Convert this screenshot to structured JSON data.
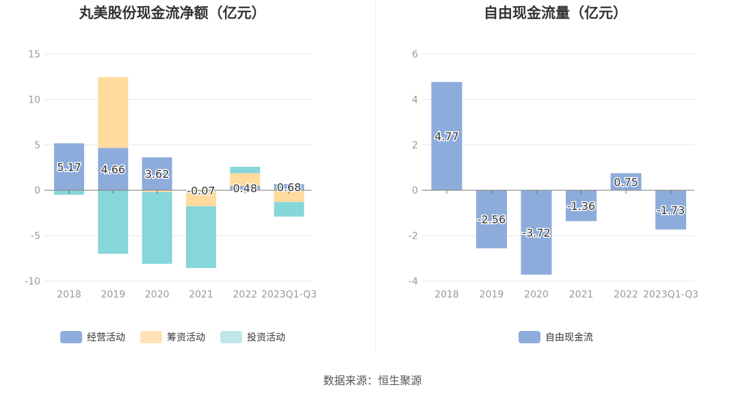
{
  "source": "数据来源：恒生聚源",
  "chart_data": [
    {
      "type": "bar",
      "stacked": true,
      "title": "丸美股份现金流净额（亿元）",
      "categories": [
        "2018",
        "2019",
        "2020",
        "2021",
        "2022",
        "2023Q1-Q3"
      ],
      "y_ticks": [
        15,
        10,
        5,
        0,
        -5,
        -10
      ],
      "ylim": [
        -10,
        15
      ],
      "series": [
        {
          "name": "经营活动",
          "color": "#8eacdb",
          "values": [
            5.17,
            4.66,
            3.62,
            -0.07,
            0.48,
            0.68
          ],
          "labels": [
            "5.17",
            "4.66",
            "3.62",
            "-0.07",
            "0.48",
            "0.68"
          ]
        },
        {
          "name": "筹资活动",
          "color": "#ffdb9e",
          "values": [
            0.0,
            7.8,
            -0.2,
            -1.7,
            1.4,
            -1.3
          ]
        },
        {
          "name": "投资活动",
          "color": "#86d6da",
          "values": [
            -0.5,
            -7.0,
            -7.9,
            -6.8,
            0.7,
            -1.6
          ]
        }
      ],
      "legend": [
        {
          "name": "经营活动",
          "color": "#8eacdb"
        },
        {
          "name": "筹资活动",
          "color": "#ffe1b5"
        },
        {
          "name": "投资活动",
          "color": "#bfe6e8"
        }
      ]
    },
    {
      "type": "bar",
      "title": "自由现金流量（亿元）",
      "categories": [
        "2018",
        "2019",
        "2020",
        "2021",
        "2022",
        "2023Q1-Q3"
      ],
      "y_ticks": [
        6,
        4,
        2,
        0,
        -2,
        -4
      ],
      "ylim": [
        -4,
        6
      ],
      "series": [
        {
          "name": "自由现金流",
          "color": "#8eacdb",
          "values": [
            4.77,
            -2.56,
            -3.72,
            -1.36,
            0.75,
            -1.73
          ],
          "labels": [
            "4.77",
            "-2.56",
            "-3.72",
            "-1.36",
            "0.75",
            "-1.73"
          ]
        }
      ],
      "legend": [
        {
          "name": "自由现金流",
          "color": "#8eacdb"
        }
      ]
    }
  ]
}
